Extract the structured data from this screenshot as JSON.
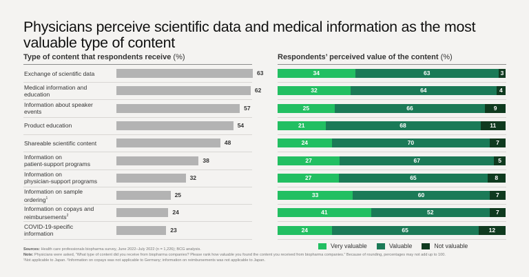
{
  "title": "Physicians perceive scientific data and medical information as the most valuable type of content",
  "left_subtitle": "Type of content that respondents receive",
  "right_subtitle": "Respondents’ perceived value of the content",
  "pct_suffix": "(%)",
  "colors": {
    "received_bar": "#b3b3b3",
    "very_valuable": "#22bf62",
    "valuable": "#1b7a57",
    "not_valuable": "#0f3a1f"
  },
  "chart_data": [
    {
      "type": "bar",
      "orientation": "horizontal",
      "title": "Type of content that respondents receive (%)",
      "categories": [
        "Exchange of scientific data",
        "Medical information and education",
        "Information about speaker events",
        "Product education",
        "Shareable scientific content",
        "Information on patient-support programs",
        "Information on physician-support programs",
        "Information on sample ordering¹",
        "Information on copays and reimbursements²",
        "COVID-19-specific information"
      ],
      "values": [
        63,
        62,
        57,
        54,
        48,
        38,
        32,
        25,
        24,
        23
      ],
      "xlim": [
        0,
        63
      ],
      "grid": false
    },
    {
      "type": "bar",
      "orientation": "horizontal",
      "stacked": true,
      "title": "Respondents’ perceived value of the content (%)",
      "categories": [
        "Exchange of scientific data",
        "Medical information and education",
        "Information about speaker events",
        "Product education",
        "Shareable scientific content",
        "Information on patient-support programs",
        "Information on physician-support programs",
        "Information on sample ordering¹",
        "Information on copays and reimbursements²",
        "COVID-19-specific information"
      ],
      "series": [
        {
          "name": "Very valuable",
          "values": [
            34,
            32,
            25,
            21,
            24,
            27,
            27,
            33,
            41,
            24
          ]
        },
        {
          "name": "Valuable",
          "values": [
            63,
            64,
            66,
            68,
            70,
            67,
            65,
            60,
            52,
            65
          ]
        },
        {
          "name": "Not valuable",
          "values": [
            3,
            4,
            9,
            11,
            7,
            5,
            8,
            7,
            7,
            12
          ]
        }
      ],
      "legend": "bottom-right",
      "xlim": [
        0,
        100
      ]
    }
  ],
  "rows": [
    {
      "label_1": "Exchange of scientific data",
      "label_2": "",
      "sup": ""
    },
    {
      "label_1": "Medical information and",
      "label_2": "education",
      "sup": ""
    },
    {
      "label_1": "Information about speaker",
      "label_2": "events",
      "sup": ""
    },
    {
      "label_1": "Product education",
      "label_2": "",
      "sup": ""
    },
    {
      "label_1": "Shareable scientific content",
      "label_2": "",
      "sup": ""
    },
    {
      "label_1": "Information on",
      "label_2": "patient-support programs",
      "sup": ""
    },
    {
      "label_1": "Information on",
      "label_2": "physician-support programs",
      "sup": ""
    },
    {
      "label_1": "Information on sample",
      "label_2": "ordering",
      "sup": "1"
    },
    {
      "label_1": "Information on copays and",
      "label_2": "reimbursements",
      "sup": "2"
    },
    {
      "label_1": "COVID-19-specific",
      "label_2": "information",
      "sup": ""
    }
  ],
  "legend": [
    "Very valuable",
    "Valuable",
    "Not valuable"
  ],
  "footnotes": {
    "sources_label": "Sources:",
    "sources": "Health care professionals biopharma survey, June 2022–July 2022 (n = 1,226); BCG analysis.",
    "note_label": "Note:",
    "note": "Physicians were asked, “What type of content did you receive from biopharma companies? Please rank how valuable you found the content you received from biopharma companies.” Because of rounding, percentages may not add up to 100.",
    "note_2": "¹Not applicable to Japan. ²Information on copays was not applicable to Germany; information on reimbursements was not applicable to Japan."
  }
}
